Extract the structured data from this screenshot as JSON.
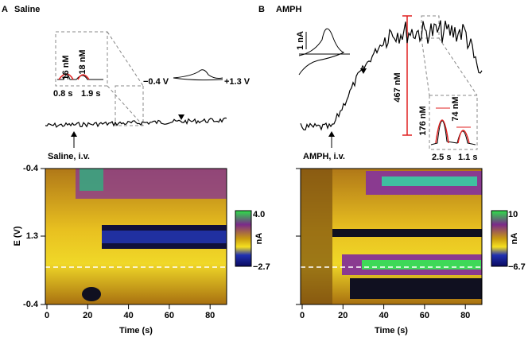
{
  "panels": [
    {
      "label": "A",
      "title": "Saline",
      "injection": "Saline, i.v.",
      "cv_labels": [
        "−0.4 V",
        "+1.3 V"
      ],
      "inset": {
        "peaks": [
          "16 nM",
          "18 nM"
        ],
        "widths": [
          "0.8 s",
          "1.9 s"
        ]
      },
      "colorbar": {
        "max": "4.0",
        "unit": "nA",
        "min": "−2.7"
      },
      "y_axis": {
        "label": "E (V)",
        "ticks": [
          "-0.4",
          "1.3",
          "-0.4"
        ]
      },
      "x_axis": {
        "label": "Time (s)",
        "ticks": [
          "0",
          "20",
          "40",
          "60",
          "80"
        ]
      }
    },
    {
      "label": "B",
      "title": "AMPH",
      "injection": "AMPH, i.v.",
      "cv_scale": "1 nA",
      "peak": "467 nM",
      "inset": {
        "peaks": [
          "176 nM",
          "74 nM"
        ],
        "widths": [
          "2.5 s",
          "1.1 s"
        ]
      },
      "colorbar": {
        "max": "10",
        "unit": "nA",
        "min": "−6.7"
      },
      "x_axis": {
        "label": "Time (s)",
        "ticks": [
          "0",
          "20",
          "40",
          "60",
          "80"
        ]
      }
    }
  ]
}
